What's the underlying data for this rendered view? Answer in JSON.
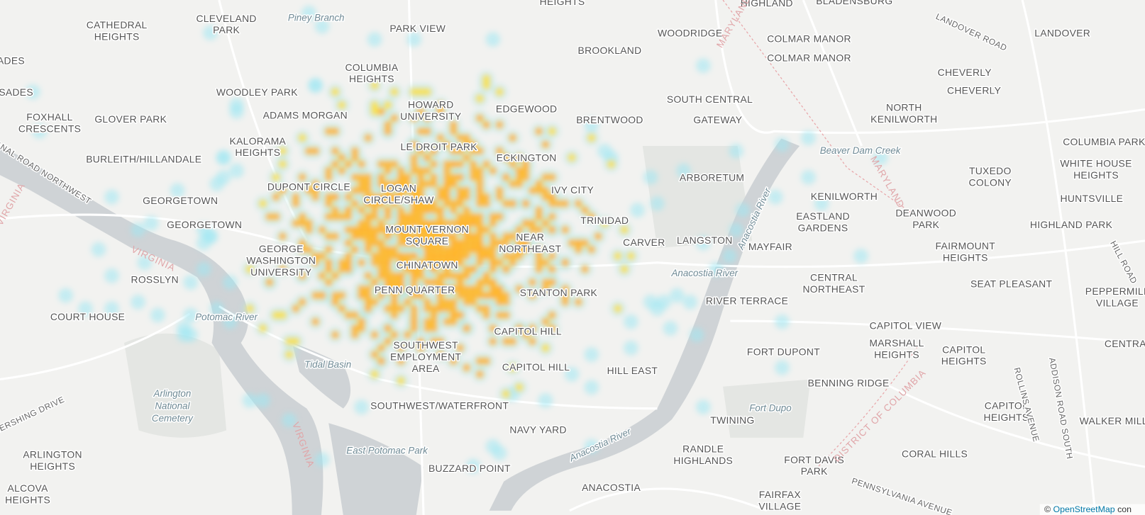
{
  "map": {
    "labels": [
      {
        "lines": [
          "CATHEDRAL",
          "HEIGHTS"
        ]
      },
      {
        "lines": [
          "CLEVELAND",
          "PARK"
        ]
      },
      {
        "lines": [
          "PARK VIEW"
        ]
      },
      {
        "lines": [
          "HEIGHTS"
        ]
      },
      {
        "lines": [
          "HIGHLAND"
        ]
      },
      {
        "lines": [
          "BLADENSBURG"
        ]
      },
      {
        "lines": [
          "WOODRIDGE"
        ]
      },
      {
        "lines": [
          "COLMAR MANOR"
        ]
      },
      {
        "lines": [
          "COLMAR MANOR"
        ]
      },
      {
        "lines": [
          "LANDOVER"
        ]
      },
      {
        "lines": [
          "BROOKLAND"
        ]
      },
      {
        "lines": [
          "COLUMBIA",
          "HEIGHTS"
        ]
      },
      {
        "lines": [
          "ADES"
        ]
      },
      {
        "lines": [
          "SADES"
        ]
      },
      {
        "lines": [
          "WOODLEY PARK"
        ]
      },
      {
        "lines": [
          "HOWARD",
          "UNIVERSITY"
        ]
      },
      {
        "lines": [
          "ADAMS MORGAN"
        ]
      },
      {
        "lines": [
          "CHEVERLY"
        ]
      },
      {
        "lines": [
          "CHEVERLY"
        ]
      },
      {
        "lines": [
          "SOUTH CENTRAL"
        ]
      },
      {
        "lines": [
          "EDGEWOOD"
        ]
      },
      {
        "lines": [
          "BRENTWOOD"
        ]
      },
      {
        "lines": [
          "GATEWAY"
        ]
      },
      {
        "lines": [
          "NORTH",
          "KENILWORTH"
        ]
      },
      {
        "lines": [
          "FOXHALL",
          "CRESCENTS"
        ]
      },
      {
        "lines": [
          "GLOVER PARK"
        ]
      },
      {
        "lines": [
          "KALORAMA",
          "HEIGHTS"
        ]
      },
      {
        "lines": [
          "LE DROIT PARK"
        ]
      },
      {
        "lines": [
          "COLUMBIA PARK"
        ]
      },
      {
        "lines": [
          "WHITE HOUSE",
          "HEIGHTS"
        ]
      },
      {
        "lines": [
          "BURLEITH/HILLANDALE"
        ]
      },
      {
        "lines": [
          "ECKINGTON"
        ]
      },
      {
        "lines": [
          "TUXEDO",
          "COLONY"
        ]
      },
      {
        "lines": [
          "ARBORETUM"
        ]
      },
      {
        "lines": [
          "GEORGETOWN"
        ]
      },
      {
        "lines": [
          "DUPONT CIRCLE"
        ]
      },
      {
        "lines": [
          "LOGAN",
          "CIRCLE/SHAW"
        ]
      },
      {
        "lines": [
          "IVY CITY"
        ]
      },
      {
        "lines": [
          "KENILWORTH"
        ]
      },
      {
        "lines": [
          "HUNTSVILLE"
        ]
      },
      {
        "lines": [
          "DEANWOOD",
          "PARK"
        ]
      },
      {
        "lines": [
          "TRINIDAD"
        ]
      },
      {
        "lines": [
          "EASTLAND",
          "GARDENS"
        ]
      },
      {
        "lines": [
          "GEORGETOWN"
        ]
      },
      {
        "lines": [
          "HIGHLAND PARK"
        ]
      },
      {
        "lines": [
          "MOUNT VERNON",
          "SQUARE"
        ]
      },
      {
        "lines": [
          "NEAR",
          "NORTHEAST"
        ]
      },
      {
        "lines": [
          "CARVER"
        ]
      },
      {
        "lines": [
          "LANGSTON"
        ]
      },
      {
        "lines": [
          "MAYFAIR"
        ]
      },
      {
        "lines": [
          "FAIRMOUNT",
          "HEIGHTS"
        ]
      },
      {
        "lines": [
          "GEORGE",
          "WASHINGTON",
          "UNIVERSITY"
        ]
      },
      {
        "lines": [
          "CHINATOWN"
        ]
      },
      {
        "lines": [
          "ROSSLYN"
        ]
      },
      {
        "lines": [
          "CENTRAL",
          "NORTHEAST"
        ]
      },
      {
        "lines": [
          "SEAT PLEASANT"
        ]
      },
      {
        "lines": [
          "PEPPERMILL",
          "VILLAGE"
        ]
      },
      {
        "lines": [
          "PENN QUARTER"
        ]
      },
      {
        "lines": [
          "STANTON PARK"
        ]
      },
      {
        "lines": [
          "RIVER TERRACE"
        ]
      },
      {
        "lines": [
          "COURT HOUSE"
        ]
      },
      {
        "lines": [
          "CAPITOL VIEW"
        ]
      },
      {
        "lines": [
          "CAPITOL HILL"
        ]
      },
      {
        "lines": [
          "MARSHALL",
          "HEIGHTS"
        ]
      },
      {
        "lines": [
          "SOUTHWEST",
          "EMPLOYMENT",
          "AREA"
        ]
      },
      {
        "lines": [
          "FORT DUPONT"
        ]
      },
      {
        "lines": [
          "CAPITOL",
          "HEIGHTS"
        ]
      },
      {
        "lines": [
          "CENTRAL"
        ]
      },
      {
        "lines": [
          "CAPITOL HILL"
        ]
      },
      {
        "lines": [
          "HILL EAST"
        ]
      },
      {
        "lines": [
          "BENNING RIDGE"
        ]
      },
      {
        "lines": [
          "SOUTHWEST/WATERFRONT"
        ]
      },
      {
        "lines": [
          "CAPITOL",
          "HEIGHTS"
        ]
      },
      {
        "lines": [
          "TWINING"
        ]
      },
      {
        "lines": [
          "WALKER MILL"
        ]
      },
      {
        "lines": [
          "NAVY YARD"
        ]
      },
      {
        "lines": [
          "RANDLE",
          "HIGHLANDS"
        ]
      },
      {
        "lines": [
          "FORT DAVIS",
          "PARK"
        ]
      },
      {
        "lines": [
          "CORAL HILLS"
        ]
      },
      {
        "lines": [
          "ARLINGTON",
          "HEIGHTS"
        ]
      },
      {
        "lines": [
          "BUZZARD POINT"
        ]
      },
      {
        "lines": [
          "ANACOSTIA"
        ]
      },
      {
        "lines": [
          "ALCOVA",
          "HEIGHTS"
        ]
      },
      {
        "lines": [
          "FAIRFAX",
          "VILLAGE"
        ]
      }
    ],
    "water_labels": [
      {
        "lines": [
          "Piney Branch"
        ]
      },
      {
        "lines": [
          "Arlington",
          "National",
          "Cemetery"
        ]
      },
      {
        "lines": [
          "Tidal Basin"
        ]
      },
      {
        "lines": [
          "East Potomac Park"
        ]
      },
      {
        "lines": [
          "Anacostia River"
        ]
      },
      {
        "lines": [
          "Fort Dupo"
        ]
      },
      {
        "lines": [
          "Anacostia River"
        ]
      },
      {
        "lines": [
          "Anacostia River"
        ]
      },
      {
        "lines": [
          "Beaver Dam Creek"
        ]
      },
      {
        "lines": [
          "Potomac River"
        ]
      }
    ],
    "road_labels": [
      {
        "lines": [
          "LANDOVER ROAD"
        ]
      },
      {
        "lines": [
          "CANAL ROAD NORTHWEST"
        ]
      },
      {
        "lines": [
          "HERSHING DRIVE"
        ]
      },
      {
        "lines": [
          "ADDISON ROAD SOUTH"
        ]
      },
      {
        "lines": [
          "ROLLINS AVENUE"
        ]
      },
      {
        "lines": [
          "PENNSYLVANIA AVENUE"
        ]
      },
      {
        "lines": [
          "HILL ROAD"
        ]
      }
    ],
    "border_labels": [
      {
        "lines": [
          "VIRGINIA"
        ]
      },
      {
        "lines": [
          "VIRGINIA"
        ]
      },
      {
        "lines": [
          "VIRGINIA"
        ]
      },
      {
        "lines": [
          "MARYLAND"
        ]
      },
      {
        "lines": [
          "MARYLAND"
        ]
      },
      {
        "lines": [
          "DISTRICT OF COLUMBIA"
        ]
      }
    ],
    "attribution": {
      "prefix": "©",
      "link": "OpenStreetMap",
      "suffix": "con"
    }
  }
}
